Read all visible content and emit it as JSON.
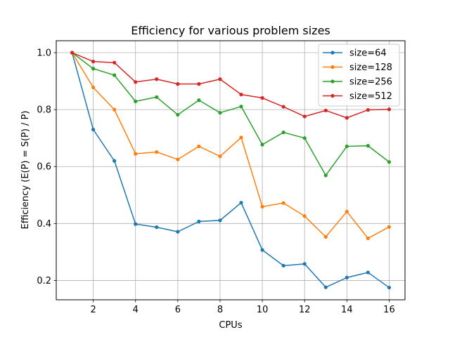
{
  "chart_data": {
    "type": "line",
    "title": "Efficiency for various problem sizes",
    "xlabel": "CPUs",
    "ylabel": "Efficiency (E(P) = S(P) / P)",
    "x": [
      1,
      2,
      3,
      4,
      5,
      6,
      7,
      8,
      9,
      10,
      11,
      12,
      13,
      14,
      15,
      16
    ],
    "xlim": [
      0.25,
      16.75
    ],
    "ylim": [
      0.132,
      1.042
    ],
    "xticks": [
      2,
      4,
      6,
      8,
      10,
      12,
      14,
      16
    ],
    "yticks": [
      0.2,
      0.4,
      0.6,
      0.8,
      1.0
    ],
    "xtick_labels": [
      "2",
      "4",
      "6",
      "8",
      "10",
      "12",
      "14",
      "16"
    ],
    "ytick_labels": [
      "0.2",
      "0.4",
      "0.6",
      "0.8",
      "1.0"
    ],
    "grid": true,
    "legend_position": "top-right",
    "series": [
      {
        "name": "size=64",
        "color": "#1f77b4",
        "values": [
          1.0,
          0.73,
          0.62,
          0.398,
          0.387,
          0.371,
          0.407,
          0.411,
          0.473,
          0.307,
          0.252,
          0.258,
          0.176,
          0.21,
          0.228,
          0.175
        ]
      },
      {
        "name": "size=128",
        "color": "#ff7f0e",
        "values": [
          1.0,
          0.878,
          0.8,
          0.645,
          0.651,
          0.625,
          0.671,
          0.636,
          0.702,
          0.459,
          0.472,
          0.426,
          0.353,
          0.442,
          0.348,
          0.388
        ]
      },
      {
        "name": "size=256",
        "color": "#2ca02c",
        "values": [
          1.0,
          0.944,
          0.921,
          0.829,
          0.844,
          0.782,
          0.833,
          0.789,
          0.811,
          0.677,
          0.72,
          0.7,
          0.569,
          0.671,
          0.673,
          0.616
        ]
      },
      {
        "name": "size=512",
        "color": "#d62728",
        "values": [
          1.0,
          0.969,
          0.965,
          0.897,
          0.907,
          0.89,
          0.89,
          0.907,
          0.853,
          0.841,
          0.81,
          0.776,
          0.797,
          0.771,
          0.799,
          0.801
        ]
      }
    ]
  }
}
